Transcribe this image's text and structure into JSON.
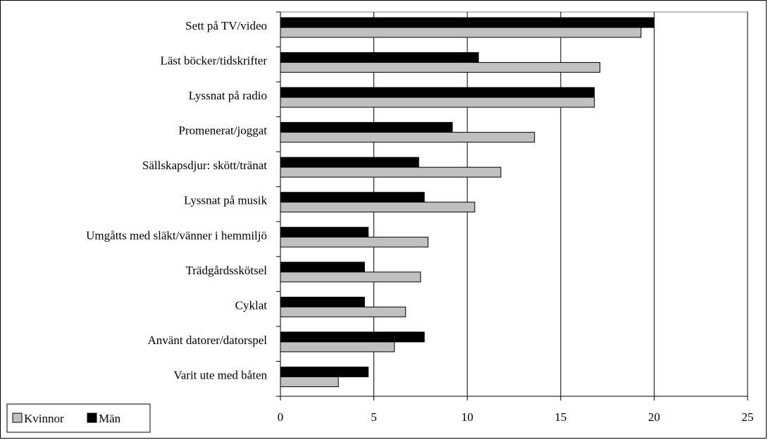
{
  "chart_data": {
    "type": "bar",
    "orientation": "horizontal",
    "title": "",
    "xlabel": "",
    "ylabel": "",
    "xlim": [
      0,
      25
    ],
    "xticks": [
      0,
      5,
      10,
      15,
      20,
      25
    ],
    "grid": "vertical",
    "legend_position": "bottom-left",
    "categories": [
      "Sett på TV/video",
      "Läst böcker/tidskrifter",
      "Lyssnat på radio",
      "Promenerat/joggat",
      "Sällskapsdjur: skött/tränat",
      "Lyssnat på musik",
      "Umgåtts med släkt/vänner i hemmiljö",
      "Trädgårdsskötsel",
      "Cyklat",
      "Använt datorer/datorspel",
      "Varit ute med båten"
    ],
    "series": [
      {
        "name": "Män",
        "color": "#000000",
        "values": [
          20.0,
          10.6,
          16.8,
          9.2,
          7.4,
          7.7,
          4.7,
          4.5,
          4.5,
          7.7,
          4.7
        ]
      },
      {
        "name": "Kvinnor",
        "color": "#c0c0c0",
        "values": [
          19.3,
          17.1,
          16.8,
          13.6,
          11.8,
          10.4,
          7.9,
          7.5,
          6.7,
          6.1,
          3.1
        ]
      }
    ],
    "legend": [
      {
        "name": "Kvinnor",
        "color": "#c0c0c0"
      },
      {
        "name": "Män",
        "color": "#000000"
      }
    ]
  }
}
